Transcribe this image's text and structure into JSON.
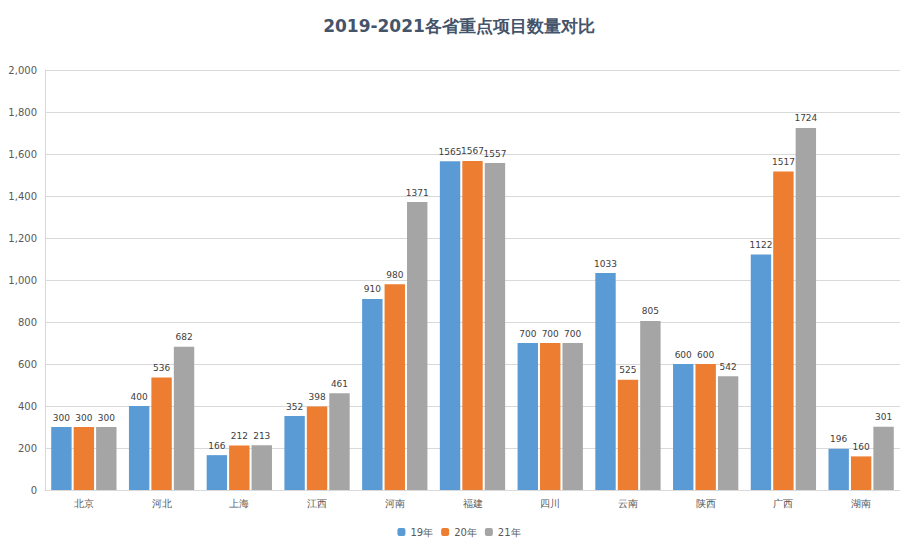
{
  "chart_data": {
    "type": "bar",
    "title": "2019-2021各省重点项目数量对比",
    "categories": [
      "北京",
      "河北",
      "上海",
      "江西",
      "河南",
      "福建",
      "四川",
      "云南",
      "陕西",
      "广西",
      "湖南"
    ],
    "series": [
      {
        "name": "19年",
        "color": "#5b9bd5",
        "values": [
          300,
          400,
          166,
          352,
          910,
          1565,
          700,
          1033,
          600,
          1122,
          196
        ]
      },
      {
        "name": "20年",
        "color": "#ed7d31",
        "values": [
          300,
          536,
          212,
          398,
          980,
          1567,
          700,
          525,
          600,
          1517,
          160
        ]
      },
      {
        "name": "21年",
        "color": "#a5a5a5",
        "values": [
          300,
          682,
          213,
          461,
          1371,
          1557,
          700,
          805,
          542,
          1724,
          301
        ]
      }
    ],
    "ylim": [
      0,
      2000
    ],
    "yticks": [
      0,
      200,
      400,
      600,
      800,
      1000,
      1200,
      1400,
      1600,
      1800,
      2000
    ],
    "grid": true,
    "legend": "bottom",
    "data_labels": true
  }
}
